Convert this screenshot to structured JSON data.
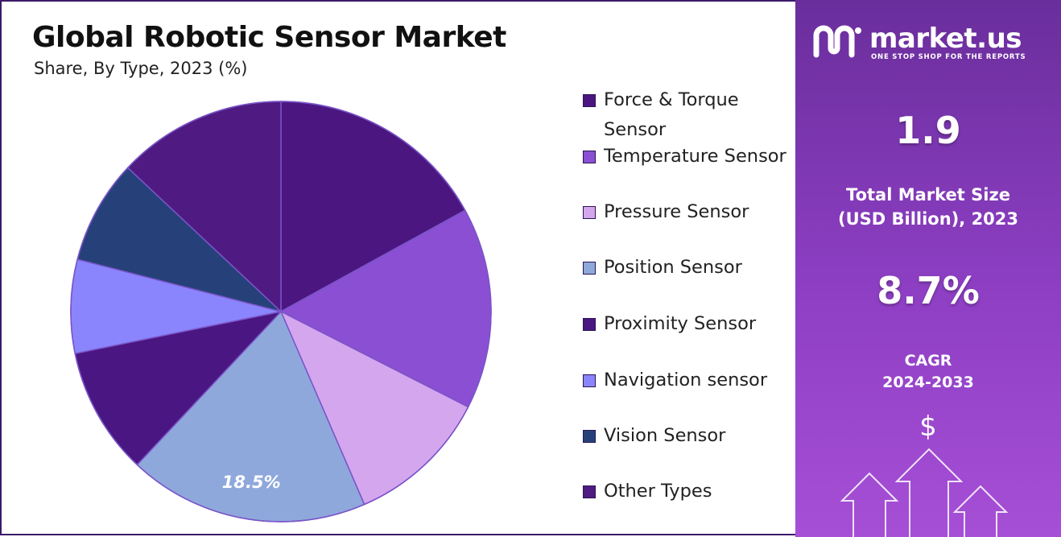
{
  "header": {
    "title": "Global Robotic Sensor Market",
    "subtitle": "Share, By Type, 2023 (%)"
  },
  "chart_data": {
    "type": "pie",
    "title": "Global Robotic Sensor Market",
    "subtitle": "Share, By Type, 2023 (%)",
    "categories": [
      "Force & Torque Sensor",
      "Temperature Sensor",
      "Pressure Sensor",
      "Position Sensor",
      "Proximity Sensor",
      "Navigation sensor",
      "Vision Sensor",
      "Other Types"
    ],
    "values": [
      17.0,
      15.5,
      11.0,
      18.5,
      9.8,
      7.2,
      8.0,
      13.0
    ],
    "colors": [
      "#4c1681",
      "#8a4fd2",
      "#d4a6ee",
      "#8fa8dc",
      "#4a1681",
      "#8a85fc",
      "#26417a",
      "#4f1b82"
    ],
    "data_labels": [
      {
        "category": "Position Sensor",
        "text": "18.5%"
      }
    ],
    "legend_position": "right"
  },
  "legend": {
    "items": [
      {
        "label": "Force & Torque Sensor",
        "color": "#4c1681"
      },
      {
        "label": "Temperature Sensor",
        "color": "#8a4fd2"
      },
      {
        "label": "Pressure Sensor",
        "color": "#d4a6ee"
      },
      {
        "label": "Position Sensor",
        "color": "#8fa8dc"
      },
      {
        "label": "Proximity Sensor",
        "color": "#4a1681"
      },
      {
        "label": "Navigation sensor",
        "color": "#8a85fc"
      },
      {
        "label": "Vision Sensor",
        "color": "#26417a"
      },
      {
        "label": "Other Types",
        "color": "#4f1b82"
      }
    ]
  },
  "sidebar": {
    "brand": "market.us",
    "tagline": "ONE STOP SHOP FOR THE REPORTS",
    "market_size_value": "1.9",
    "market_size_label": "Total Market Size (USD Billion), 2023",
    "cagr_value": "8.7%",
    "cagr_label_line1": "CAGR",
    "cagr_label_line2": "2024-2033",
    "dollar_glyph": "$"
  }
}
